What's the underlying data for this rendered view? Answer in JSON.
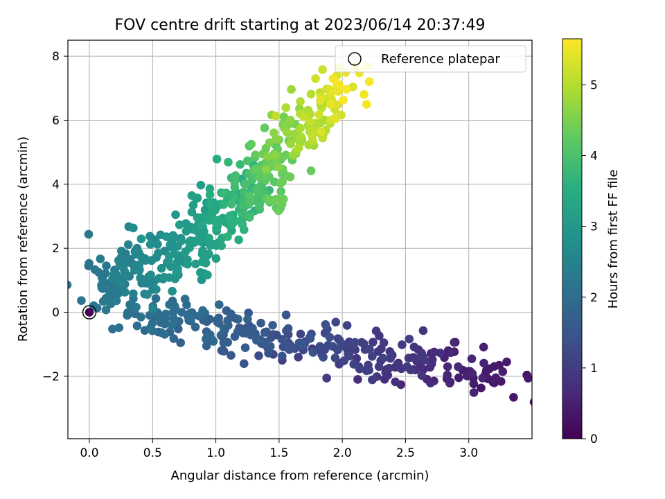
{
  "chart_data": {
    "type": "scatter",
    "title": "FOV centre drift starting at 2023/06/14 20:37:49",
    "xlabel": "Angular distance from reference (arcmin)",
    "ylabel": "Rotation from reference (arcmin)",
    "xlim": [
      -0.17,
      3.5
    ],
    "ylim": [
      -3.95,
      8.5
    ],
    "xticks": [
      0.0,
      0.5,
      1.0,
      1.5,
      2.0,
      2.5,
      3.0
    ],
    "xtick_labels": [
      "0.0",
      "0.5",
      "1.0",
      "1.5",
      "2.0",
      "2.5",
      "3.0"
    ],
    "yticks": [
      -2,
      0,
      2,
      4,
      6,
      8
    ],
    "ytick_labels": [
      "−2",
      "0",
      "2",
      "4",
      "6",
      "8"
    ],
    "grid": true,
    "legend": {
      "position": "top-right",
      "entries": [
        "Reference platepar"
      ]
    },
    "colorbar": {
      "label": "Hours from first FF file",
      "range": [
        0,
        5.65
      ],
      "ticks": [
        0,
        1,
        2,
        3,
        4,
        5
      ],
      "tick_labels": [
        "0",
        "1",
        "2",
        "3",
        "4",
        "5"
      ],
      "colormap": "viridis"
    },
    "reference_point": {
      "x": 0.0,
      "y": 0.0
    },
    "clusters": [
      {
        "segment": "lower-arm",
        "count": 300,
        "hours": [
          0.3,
          2.15
        ],
        "x": [
          3.3,
          0.35
        ],
        "y_center": [
          -2.2,
          0.0
        ],
        "spread": [
          0.18,
          0.35
        ]
      },
      {
        "segment": "upper-left-cluster",
        "count": 170,
        "hours": [
          2.15,
          3.2
        ],
        "x": [
          0.05,
          0.95
        ],
        "y_center": [
          0.7,
          2.4
        ],
        "spread": [
          0.08,
          0.55
        ]
      },
      {
        "segment": "middle-arm",
        "count": 180,
        "hours": [
          3.0,
          4.4
        ],
        "x": [
          0.85,
          1.55
        ],
        "y_center": [
          2.6,
          4.4
        ],
        "spread": [
          0.08,
          0.5
        ]
      },
      {
        "segment": "upper-arm",
        "count": 120,
        "hours": [
          4.2,
          5.65
        ],
        "x": [
          1.35,
          2.1
        ],
        "y_center": [
          4.6,
          7.2
        ],
        "spread": [
          0.08,
          0.55
        ]
      }
    ]
  }
}
